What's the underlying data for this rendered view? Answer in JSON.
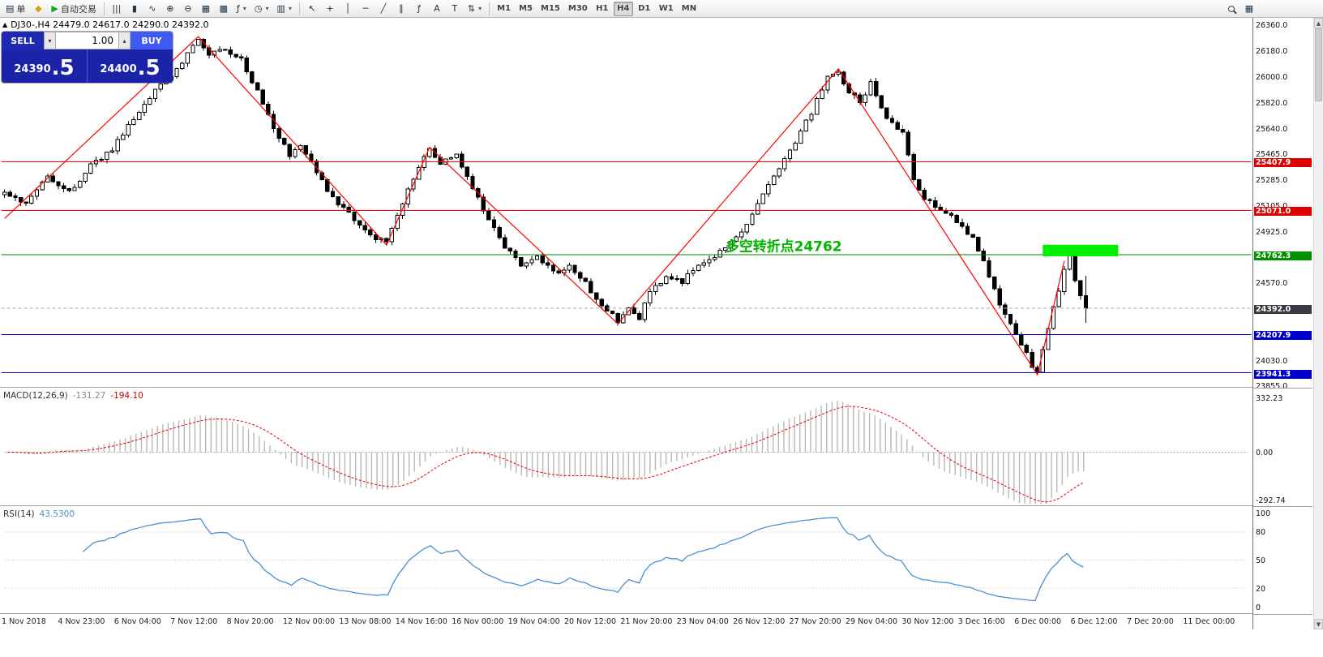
{
  "toolbar": {
    "active_timeframe": "H4",
    "groups": [
      {
        "name": "orders",
        "items": [
          {
            "name": "new-order-button",
            "glyph": "▤",
            "label": "单"
          },
          {
            "name": "quotes-button",
            "glyph": "◆",
            "cls": "gold"
          },
          {
            "name": "autotrading-button",
            "glyph": "▶",
            "label": "自动交易",
            "cls": "green"
          }
        ]
      },
      {
        "name": "charts",
        "items": [
          {
            "name": "bar-chart-button",
            "glyph": "|||"
          },
          {
            "name": "candlestick-chart-button",
            "glyph": "▮"
          },
          {
            "name": "line-chart-button",
            "glyph": "∿"
          },
          {
            "name": "zoom-in-button",
            "glyph": "⊕"
          },
          {
            "name": "zoom-out-button",
            "glyph": "⊖"
          },
          {
            "name": "auto-arrange-button",
            "glyph": "▦"
          },
          {
            "name": "grid-button",
            "glyph": "▩"
          },
          {
            "name": "indicators-button",
            "glyph": "ƒ",
            "dropdown": true
          },
          {
            "name": "periods-button",
            "glyph": "◷",
            "dropdown": true
          },
          {
            "name": "templates-button",
            "glyph": "▥",
            "dropdown": true
          }
        ]
      },
      {
        "name": "line-studies",
        "items": [
          {
            "name": "cursor-button",
            "glyph": "↖"
          },
          {
            "name": "crosshair-button",
            "glyph": "+"
          },
          {
            "name": "vertical-line-button",
            "glyph": "│"
          },
          {
            "name": "horizontal-line-button",
            "glyph": "─"
          },
          {
            "name": "trendline-button",
            "glyph": "╱"
          },
          {
            "name": "channel-button",
            "glyph": "∥"
          },
          {
            "name": "fibonacci-button",
            "glyph": "ƒ"
          },
          {
            "name": "text-button",
            "glyph": "A"
          },
          {
            "name": "label-button",
            "glyph": "T"
          },
          {
            "name": "arrows-button",
            "glyph": "⇅",
            "dropdown": true
          }
        ]
      },
      {
        "name": "timeframes",
        "type": "tf",
        "items": [
          {
            "name": "tf-m1-button",
            "label": "M1"
          },
          {
            "name": "tf-m5-button",
            "label": "M5"
          },
          {
            "name": "tf-m15-button",
            "label": "M15"
          },
          {
            "name": "tf-m30-button",
            "label": "M30"
          },
          {
            "name": "tf-h1-button",
            "label": "H1"
          },
          {
            "name": "tf-h4-button",
            "label": "H4"
          },
          {
            "name": "tf-d1-button",
            "label": "D1"
          },
          {
            "name": "tf-w1-button",
            "label": "W1"
          },
          {
            "name": "tf-mn-button",
            "label": "MN"
          }
        ]
      }
    ],
    "right_items": [
      {
        "name": "search-button",
        "glyph": "mag"
      },
      {
        "name": "window-list-button",
        "glyph": "▦"
      }
    ]
  },
  "symbol_bar": {
    "text": "DJ30-,H4 24479.0 24617.0 24290.0 24392.0"
  },
  "trade_panel": {
    "sell_label": "SELL",
    "buy_label": "BUY",
    "volume": "1.00",
    "sell_price_main": "24390",
    "sell_price_big": ".5",
    "buy_price_main": "24400",
    "buy_price_big": ".5"
  },
  "chart_data": {
    "type": "candlestick",
    "symbol": "DJ30-",
    "timeframe": "H4",
    "candle_count": 202,
    "ohlc_current": {
      "open": 24479.0,
      "high": 24617.0,
      "low": 24290.0,
      "close": 24392.0
    },
    "price_axis": {
      "max": 26360.0,
      "min": 23855.0,
      "ticks": [
        26360.0,
        26180.0,
        26000.0,
        25820.0,
        25640.0,
        25465.0,
        25285.0,
        25105.0,
        24925.0,
        24570.0,
        24030.0,
        23855.0
      ]
    },
    "levels": [
      {
        "price": 25407.9,
        "line_color": "#ff0000",
        "badge_bg": "#dd0000",
        "style": "solid"
      },
      {
        "price": 25071.0,
        "line_color": "#ff0000",
        "badge_bg": "#dd0000",
        "style": "solid"
      },
      {
        "price": 24762.3,
        "line_color": "#008000",
        "badge_bg": "#009000",
        "style": "solid"
      },
      {
        "price": 24392.0,
        "line_color": "#a8a8a8",
        "badge_bg": "#3a3a44",
        "style": "dashed"
      },
      {
        "price": 24207.9,
        "line_color": "#0000cc",
        "badge_bg": "#0000cc",
        "style": "solid"
      },
      {
        "price": 23941.3,
        "line_color": "#0000cc",
        "badge_bg": "#0000cc",
        "style": "solid"
      }
    ],
    "zigzag": {
      "color": "#ff0000",
      "points": [
        [
          0,
          25015
        ],
        [
          36,
          26280
        ],
        [
          71,
          24830
        ],
        [
          79,
          25510
        ],
        [
          114,
          24283
        ],
        [
          155,
          26056
        ],
        [
          192,
          23928
        ],
        [
          197,
          24720
        ]
      ]
    },
    "highlight": {
      "x_start_index": 193,
      "x_end_index": 207,
      "price_top": 24832,
      "price_bottom": 24752,
      "color": "#00ef00"
    },
    "annotation": {
      "text": "多空转折点24762",
      "x_index": 134,
      "price": 24790,
      "color": "#00b400",
      "font_size": 17
    },
    "price_path": [
      [
        0,
        25180
      ],
      [
        4,
        25120
      ],
      [
        8,
        25310
      ],
      [
        12,
        25200
      ],
      [
        16,
        25380
      ],
      [
        20,
        25500
      ],
      [
        24,
        25700
      ],
      [
        28,
        25900
      ],
      [
        32,
        26050
      ],
      [
        36,
        26270
      ],
      [
        38,
        26150
      ],
      [
        41,
        26200
      ],
      [
        44,
        26120
      ],
      [
        47,
        25900
      ],
      [
        50,
        25650
      ],
      [
        53,
        25450
      ],
      [
        55,
        25520
      ],
      [
        58,
        25350
      ],
      [
        61,
        25150
      ],
      [
        64,
        25050
      ],
      [
        67,
        24930
      ],
      [
        71,
        24840
      ],
      [
        74,
        25120
      ],
      [
        77,
        25380
      ],
      [
        79,
        25490
      ],
      [
        81,
        25400
      ],
      [
        84,
        25470
      ],
      [
        87,
        25230
      ],
      [
        90,
        25000
      ],
      [
        93,
        24820
      ],
      [
        96,
        24700
      ],
      [
        99,
        24750
      ],
      [
        102,
        24640
      ],
      [
        105,
        24680
      ],
      [
        108,
        24560
      ],
      [
        111,
        24420
      ],
      [
        114,
        24300
      ],
      [
        116,
        24380
      ],
      [
        118,
        24330
      ],
      [
        120,
        24500
      ],
      [
        123,
        24620
      ],
      [
        126,
        24580
      ],
      [
        129,
        24700
      ],
      [
        132,
        24760
      ],
      [
        135,
        24840
      ],
      [
        138,
        24980
      ],
      [
        141,
        25200
      ],
      [
        144,
        25380
      ],
      [
        147,
        25550
      ],
      [
        150,
        25750
      ],
      [
        153,
        26000
      ],
      [
        155,
        26040
      ],
      [
        157,
        25900
      ],
      [
        159,
        25820
      ],
      [
        161,
        25950
      ],
      [
        163,
        25780
      ],
      [
        165,
        25680
      ],
      [
        167,
        25600
      ],
      [
        169,
        25300
      ],
      [
        171,
        25150
      ],
      [
        174,
        25080
      ],
      [
        177,
        25000
      ],
      [
        180,
        24880
      ],
      [
        183,
        24620
      ],
      [
        185,
        24400
      ],
      [
        187,
        24300
      ],
      [
        189,
        24150
      ],
      [
        191,
        23990
      ],
      [
        192,
        23940
      ],
      [
        193,
        24100
      ],
      [
        194,
        24260
      ],
      [
        195,
        24400
      ],
      [
        196,
        24500
      ],
      [
        197,
        24650
      ],
      [
        198,
        24760
      ],
      [
        199,
        24600
      ],
      [
        200,
        24480
      ],
      [
        201,
        24392
      ]
    ]
  },
  "macd": {
    "label": "MACD(12,26,9)",
    "main_value": "-131.27",
    "signal_value": "-194.10",
    "axis_values": [
      332.23,
      0,
      -292.74
    ],
    "axis_labels": [
      "332.23",
      "0.00",
      "-292.74"
    ],
    "histogram_color": "#b8b8b8",
    "signal_color": "#e00000"
  },
  "rsi": {
    "label": "RSI(14)",
    "value": "43.5300",
    "axis_values": [
      100,
      80,
      50,
      20,
      0
    ],
    "axis_labels": [
      "100",
      "80",
      "50",
      "20",
      "0"
    ],
    "line_color": "#4a8fd0"
  },
  "time_axis": [
    "1 Nov 2018",
    "4 Nov 23:00",
    "6 Nov 04:00",
    "7 Nov 12:00",
    "8 Nov 20:00",
    "12 Nov 00:00",
    "13 Nov 08:00",
    "14 Nov 16:00",
    "16 Nov 00:00",
    "19 Nov 04:00",
    "20 Nov 12:00",
    "21 Nov 20:00",
    "23 Nov 04:00",
    "26 Nov 12:00",
    "27 Nov 20:00",
    "29 Nov 04:00",
    "30 Nov 12:00",
    "3 Dec 16:00",
    "6 Dec 00:00",
    "6 Dec 12:00",
    "7 Dec 20:00",
    "11 Dec 00:00"
  ]
}
